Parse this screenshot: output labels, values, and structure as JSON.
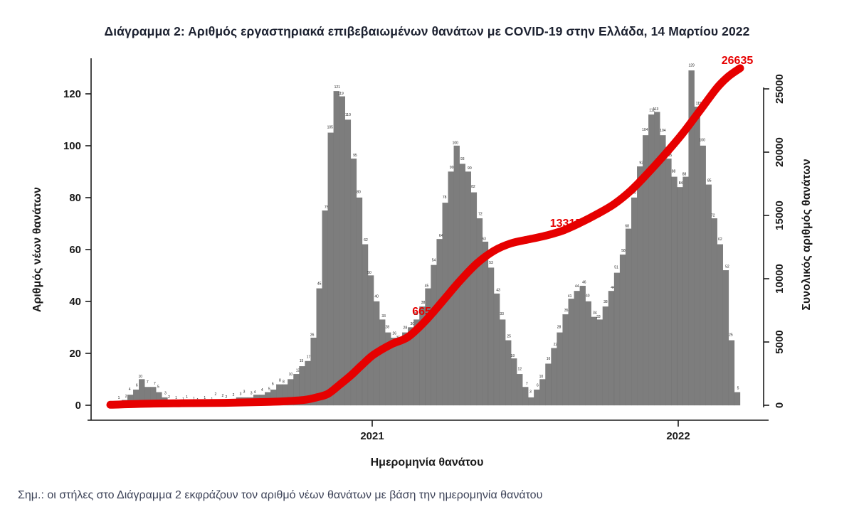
{
  "title": "Διάγραμμα 2: Αριθμός εργαστηριακά επιβεβαιωμένων θανάτων με COVID-19 στην Ελλάδα, 14 Μαρτίου 2022",
  "note": "Σημ.: οι στήλες στο Διάγραμμα 2 εκφράζουν τον αριθμό νέων θανάτων με βάση την ημερομηνία θανάτου",
  "colors": {
    "bar": "#7d7d7d",
    "bar_label": "#222222",
    "line": "#e60000",
    "annotation": "#e60000",
    "axis": "#1a1a1a"
  },
  "chart_data": {
    "type": "bar",
    "title": "Διάγραμμα 2: Αριθμός εργαστηριακά επιβεβαιωμένων θανάτων με COVID-19 στην Ελλάδα, 14 Μαρτίου 2022",
    "xlabel": "Ημερομηνία θανάτου",
    "x_ticks": [
      "2021",
      "2022"
    ],
    "y_left": {
      "label": "Αριθμός νέων θανάτων",
      "ticks": [
        0,
        20,
        40,
        60,
        80,
        100,
        120
      ],
      "range": [
        0,
        132
      ]
    },
    "y_right": {
      "label": "Συνολικός αριθμός θανάτων",
      "ticks": [
        0,
        5000,
        10000,
        15000,
        20000,
        25000
      ],
      "range": [
        0,
        26635
      ]
    },
    "bars": {
      "name": "Νέοι θάνατοι ανά ημερομηνία θανάτου (εβδομαδιαία δειγματοληψία, εκτίμηση από το γράφημα)",
      "values": [
        0,
        1,
        2,
        4,
        6,
        10,
        7,
        7,
        5,
        3,
        2,
        1,
        1,
        1,
        1,
        1,
        1,
        1,
        2,
        2,
        2,
        2,
        3,
        3,
        3,
        4,
        4,
        5,
        6,
        8,
        8,
        10,
        12,
        15,
        17,
        26,
        45,
        75,
        105,
        121,
        119,
        110,
        95,
        80,
        62,
        50,
        40,
        33,
        28,
        26,
        25,
        28,
        30,
        33,
        38,
        45,
        54,
        64,
        78,
        90,
        100,
        93,
        90,
        82,
        72,
        63,
        53,
        43,
        33,
        25,
        18,
        12,
        7,
        3,
        6,
        10,
        16,
        22,
        28,
        35,
        41,
        44,
        46,
        40,
        34,
        33,
        38,
        44,
        51,
        58,
        68,
        80,
        92,
        104,
        112,
        113,
        104,
        95,
        88,
        84,
        88,
        129,
        115,
        100,
        85,
        72,
        62,
        52,
        25,
        5
      ]
    },
    "line": {
      "name": "Συνολικός (αθροιστικός) αριθμός θανάτων",
      "points": [
        [
          0,
          40
        ],
        [
          6,
          120
        ],
        [
          12,
          160
        ],
        [
          20,
          190
        ],
        [
          27,
          260
        ],
        [
          31,
          330
        ],
        [
          34,
          430
        ],
        [
          36,
          620
        ],
        [
          38,
          900
        ],
        [
          40,
          1600
        ],
        [
          42,
          2350
        ],
        [
          44,
          3200
        ],
        [
          46,
          4000
        ],
        [
          49,
          4800
        ],
        [
          52,
          5400
        ],
        [
          55,
          6654
        ],
        [
          58,
          8200
        ],
        [
          61,
          9800
        ],
        [
          64,
          11200
        ],
        [
          67,
          12200
        ],
        [
          70,
          12800
        ],
        [
          73,
          13100
        ],
        [
          76,
          13400
        ],
        [
          79,
          13800
        ],
        [
          82,
          14400
        ],
        [
          85,
          15100
        ],
        [
          88,
          15900
        ],
        [
          91,
          17000
        ],
        [
          94,
          18400
        ],
        [
          97,
          19900
        ],
        [
          100,
          21500
        ],
        [
          103,
          23300
        ],
        [
          106,
          25100
        ],
        [
          108,
          26000
        ],
        [
          110,
          26635
        ]
      ]
    },
    "annotations": [
      {
        "text": "6654",
        "x": 597,
        "y": 443
      },
      {
        "text": "13315",
        "x": 795,
        "y": 319
      },
      {
        "text": "26635",
        "x": 1036,
        "y": 90
      }
    ],
    "legend": null,
    "grid": false
  }
}
